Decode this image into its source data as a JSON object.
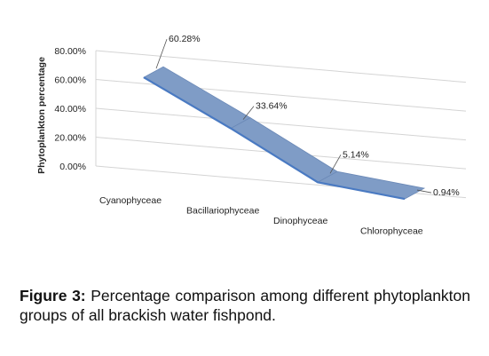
{
  "chart_data": {
    "type": "line",
    "style": "3d-ribbon",
    "categories": [
      "Cyanophyceae",
      "Bacillariophyceae",
      "Dinophyceae",
      "Chlorophyceae"
    ],
    "values": [
      60.28,
      33.64,
      5.14,
      0.94
    ],
    "data_labels": [
      "60.28%",
      "33.64%",
      "5.14%",
      "0.94%"
    ],
    "ylabel": "Phytoplankton percentage",
    "xlabel": "",
    "title": "",
    "ylim": [
      0,
      80
    ],
    "yticks": [
      "0.00%",
      "20.00%",
      "40.00%",
      "60.00%",
      "80.00%"
    ],
    "grid": true,
    "legend": "none",
    "colors": {
      "ribbon": "#7f9cc6",
      "edge": "#4a7ac2",
      "grid": "#d4d4d4",
      "text": "#222222"
    }
  },
  "caption": {
    "label": "Figure 3:",
    "text": "Percentage comparison among different phytoplankton groups of all brackish water fishpond."
  }
}
